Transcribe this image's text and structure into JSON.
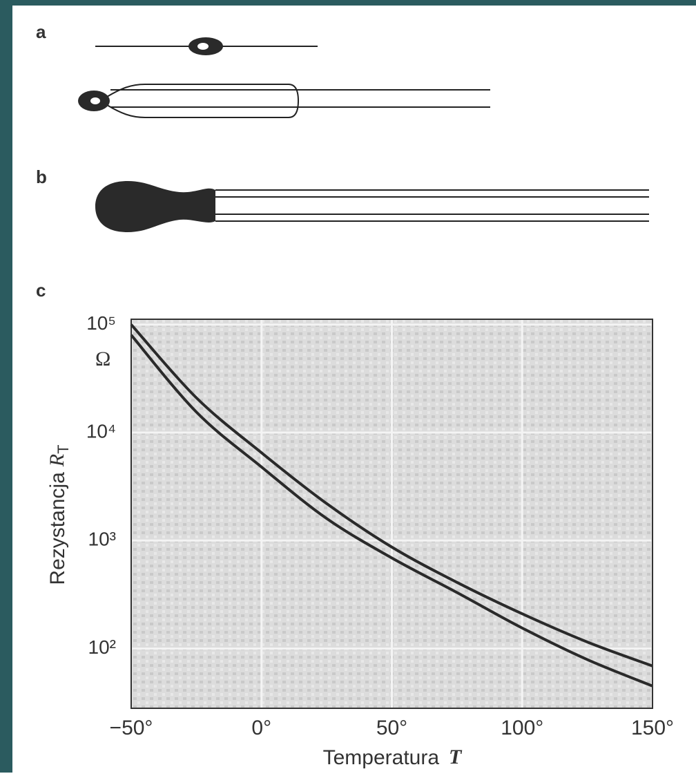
{
  "panels": [
    "a",
    "b",
    "c"
  ],
  "chart_data": {
    "type": "line",
    "x_label": "Temperatura",
    "x_label_symbol": "T",
    "y_label": "Rezystancja",
    "y_label_symbol": "R",
    "y_label_subscript": "T",
    "y_unit": "Ω",
    "x": [
      -50,
      -25,
      0,
      25,
      50,
      75,
      100,
      125,
      150
    ],
    "series": [
      {
        "color": "#2a2a2a",
        "values": [
          100000,
          21000,
          6500,
          2200,
          870,
          410,
          210,
          115,
          69
        ]
      },
      {
        "color": "#2a2a2a",
        "values": [
          80000,
          15500,
          4800,
          1600,
          690,
          330,
          155,
          79,
          45
        ]
      }
    ],
    "xlim": [
      -50,
      150
    ],
    "xticks": [
      {
        "value": -50,
        "label": "−50°"
      },
      {
        "value": 0,
        "label": "0°"
      },
      {
        "value": 50,
        "label": "50°"
      },
      {
        "value": 100,
        "label": "100°"
      },
      {
        "value": 150,
        "label": "150°"
      }
    ],
    "ylim": [
      28,
      112000
    ],
    "y_log": true,
    "yticks": [
      {
        "value": 100,
        "label": "10²"
      },
      {
        "value": 1000,
        "label": "10³"
      },
      {
        "value": 10000,
        "label": "10⁴"
      },
      {
        "value": 100000,
        "label": "10⁵"
      }
    ],
    "grid": true
  }
}
